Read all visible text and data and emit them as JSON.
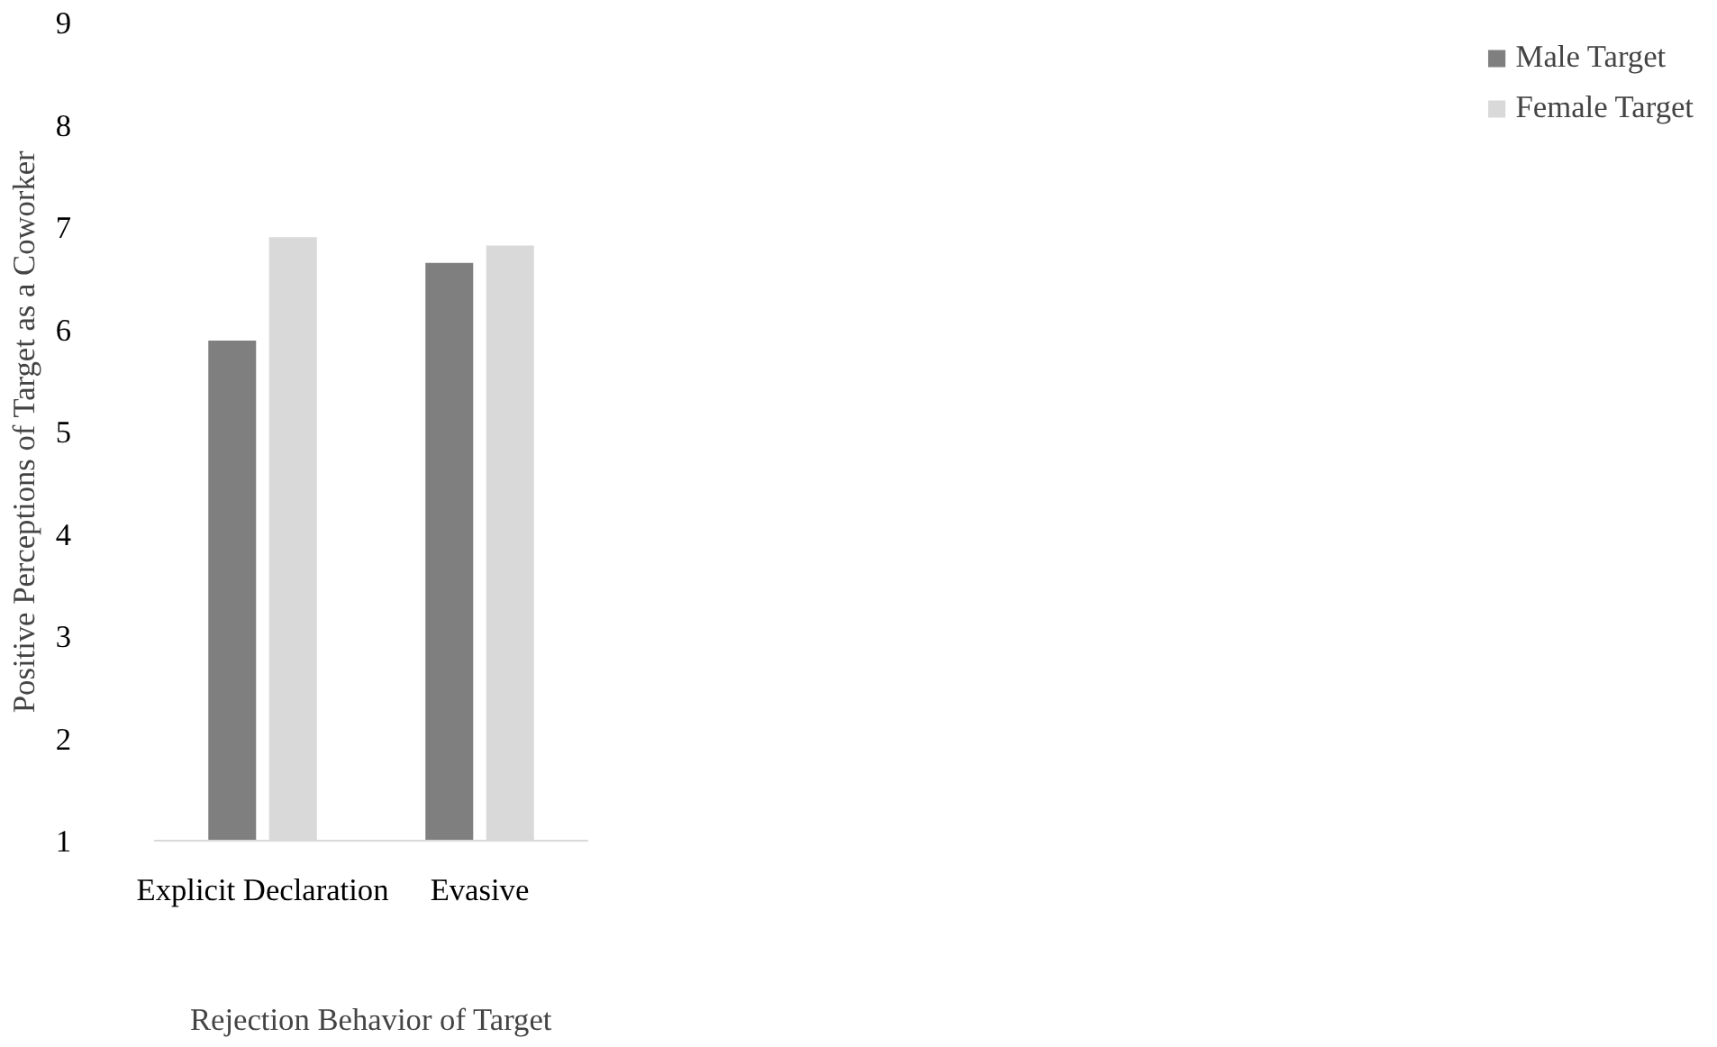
{
  "chart_data": {
    "type": "bar",
    "xlabel": "Rejection Behavior of Target",
    "ylabel": "Positive Perceptions of Target as a Coworker",
    "categories": [
      "Explicit Declaration",
      "Evasive"
    ],
    "series": [
      {
        "name": "Male Target",
        "color": "#7f7f7f",
        "values": [
          5.89,
          6.65
        ]
      },
      {
        "name": "Female Target",
        "color": "#d9d9d9",
        "values": [
          6.9,
          6.82
        ]
      }
    ],
    "ylim": [
      1,
      9
    ],
    "yticks": [
      1,
      2,
      3,
      4,
      5,
      6,
      7,
      8,
      9
    ],
    "grid": false,
    "legend": "right"
  }
}
